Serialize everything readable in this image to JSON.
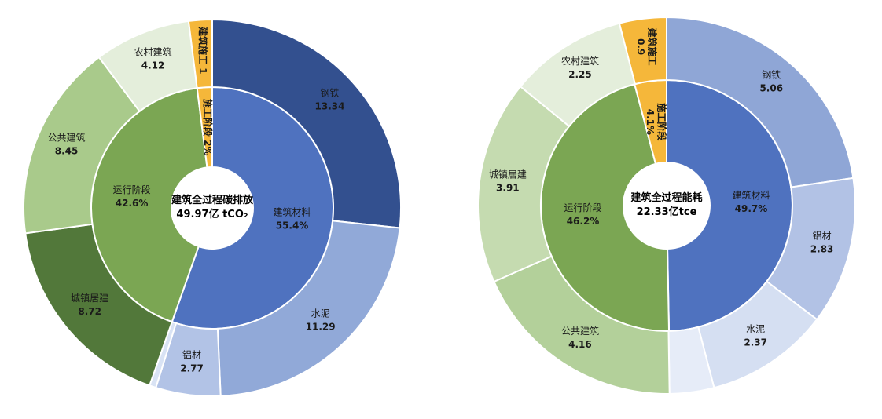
{
  "colors": {
    "materials_inner": "#4f72bf",
    "operation_inner": "#7ba653",
    "construction": "#f5b73a",
    "steel_left": "#33508f",
    "cement_left": "#91a9d8",
    "aluminum_left": "#b2c3e6",
    "other_material_left": "#d9e3f4",
    "urban_left": "#52783a",
    "public_left": "#a9ca8b",
    "rural_left": "#e4eedb",
    "steel_right": "#8fa6d6",
    "aluminum_right": "#b2c2e5",
    "cement_right": "#d5dff2",
    "other_material_right": "#e6ecf8",
    "urban_right": "#c5dbb0",
    "public_right": "#b3d09a",
    "rural_right": "#e4eedb"
  },
  "chart_data": [
    {
      "type": "sunburst",
      "center_title": "建筑全过程碳排放",
      "center_value": "49.97亿 tCO₂",
      "inner": [
        {
          "key": "materials",
          "name": "建筑材料",
          "label": "55.4%",
          "value": 55.4,
          "color_key": "materials_inner"
        },
        {
          "key": "operation",
          "name": "运行阶段",
          "label": "42.6%",
          "value": 42.6,
          "color_key": "operation_inner"
        },
        {
          "key": "construction",
          "name": "施工阶段",
          "label": "2%",
          "value": 2.0,
          "color_key": "construction",
          "inline": true
        }
      ],
      "outer": [
        {
          "name": "钢铁",
          "label": "13.34",
          "value": 13.34,
          "color_key": "steel_left"
        },
        {
          "name": "水泥",
          "label": "11.29",
          "value": 11.29,
          "color_key": "cement_left"
        },
        {
          "name": "铝材",
          "label": "2.77",
          "value": 2.77,
          "color_key": "aluminum_left"
        },
        {
          "name": "",
          "label": "",
          "value": 0.28,
          "color_key": "other_material_left"
        },
        {
          "name": "城镇居建",
          "label": "8.72",
          "value": 8.72,
          "color_key": "urban_left"
        },
        {
          "name": "公共建筑",
          "label": "8.45",
          "value": 8.45,
          "color_key": "public_left"
        },
        {
          "name": "农村建筑",
          "label": "4.12",
          "value": 4.12,
          "color_key": "rural_left"
        },
        {
          "name": "建筑施工",
          "label": "1",
          "value": 1.0,
          "color_key": "construction",
          "inline": true
        }
      ]
    },
    {
      "type": "sunburst",
      "center_title": "建筑全过程能耗",
      "center_value": "22.33亿tce",
      "inner": [
        {
          "key": "materials",
          "name": "建筑材料",
          "label": "49.7%",
          "value": 49.7,
          "color_key": "materials_inner"
        },
        {
          "key": "operation",
          "name": "运行阶段",
          "label": "46.2%",
          "value": 46.2,
          "color_key": "operation_inner"
        },
        {
          "key": "construction",
          "name": "施工阶段",
          "label": "4.1%",
          "value": 4.1,
          "color_key": "construction",
          "vertical": true
        }
      ],
      "outer": [
        {
          "name": "钢铁",
          "label": "5.06",
          "value": 5.06,
          "color_key": "steel_right"
        },
        {
          "name": "铝材",
          "label": "2.83",
          "value": 2.83,
          "color_key": "aluminum_right"
        },
        {
          "name": "水泥",
          "label": "2.37",
          "value": 2.37,
          "color_key": "cement_right"
        },
        {
          "name": "",
          "label": "",
          "value": 0.85,
          "color_key": "other_material_right"
        },
        {
          "name": "公共建筑",
          "label": "4.16",
          "value": 4.16,
          "color_key": "public_right"
        },
        {
          "name": "城镇居建",
          "label": "3.91",
          "value": 3.91,
          "color_key": "urban_right"
        },
        {
          "name": "农村建筑",
          "label": "2.25",
          "value": 2.25,
          "color_key": "rural_right"
        },
        {
          "name": "建筑施工",
          "label": "0.9",
          "value": 0.9,
          "color_key": "construction",
          "vertical": true
        }
      ]
    }
  ]
}
